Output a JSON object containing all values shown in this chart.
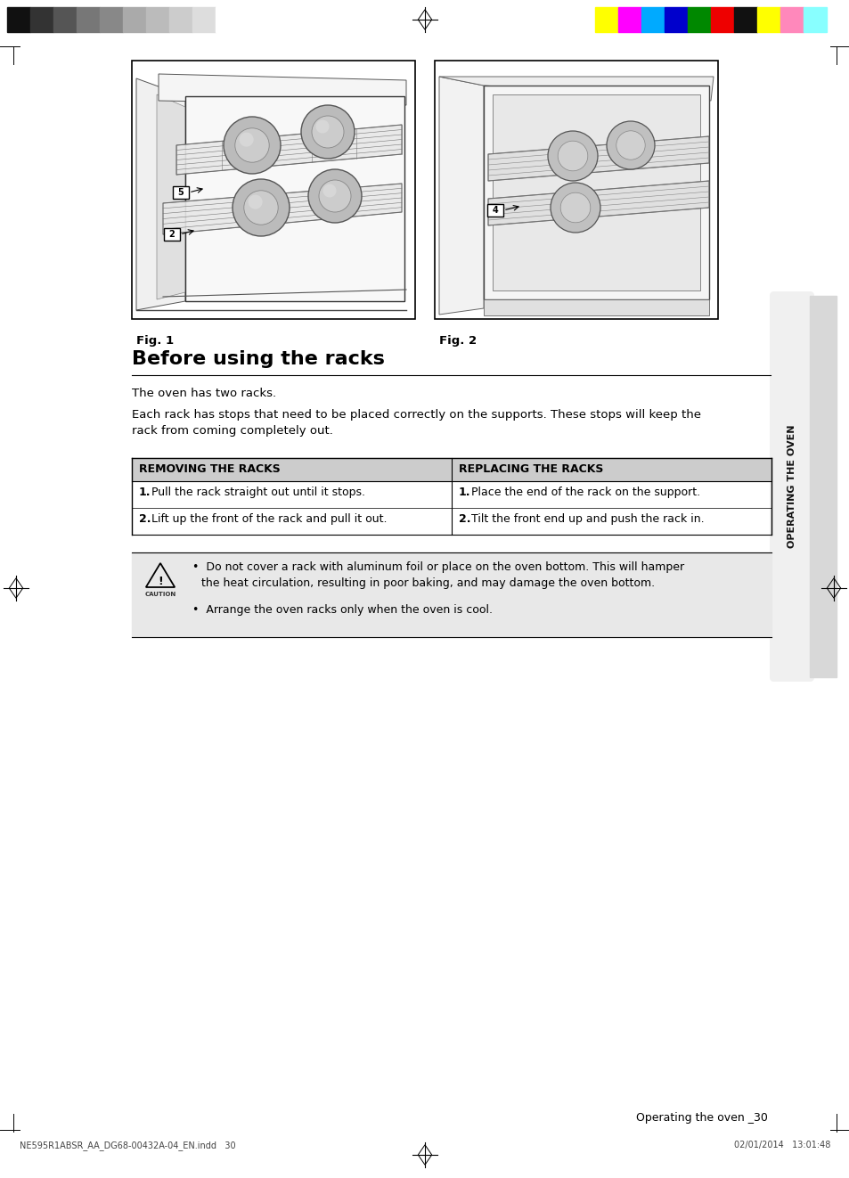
{
  "page_bg": "#ffffff",
  "gray_bar_colors": [
    "#111111",
    "#333333",
    "#555555",
    "#777777",
    "#888888",
    "#aaaaaa",
    "#bbbbbb",
    "#cccccc",
    "#dddddd",
    "#ffffff"
  ],
  "color_bar_colors": [
    "#ffff00",
    "#ff00ff",
    "#00aaff",
    "#0000cc",
    "#008800",
    "#ee0000",
    "#111111",
    "#ffff00",
    "#ff88bb",
    "#88ffff"
  ],
  "section_title": "Before using the racks",
  "para1": "The oven has two racks.",
  "para2": "Each rack has stops that need to be placed correctly on the supports. These stops will keep the rack from coming completely out.",
  "table_header_left": "REMOVING THE RACKS",
  "table_header_right": "REPLACING THE RACKS",
  "table_header_bg": "#cccccc",
  "remove_step1": "Pull the rack straight out until it stops.",
  "remove_step2": "Lift up the front of the rack and pull it out.",
  "replace_step1": "Place the end of the rack on the support.",
  "replace_step2": "Tilt the front end up and push the rack in.",
  "caution_bg": "#e8e8e8",
  "caution_bullet1a": "Do not cover a rack with aluminum foil or place on the oven bottom. This will hamper",
  "caution_bullet1b": "the heat circulation, resulting in poor baking, and may damage the oven bottom.",
  "caution_bullet2": "Arrange the oven racks only when the oven is cool.",
  "fig1_label": "Fig. 1",
  "fig2_label": "Fig. 2",
  "side_text": "OPERATING THE OVEN",
  "bottom_left": "NE595R1ABSR_AA_DG68-00432A-04_EN.indd   30",
  "bottom_right": "02/01/2014   13:01:48",
  "page_num_text": "Operating the oven _30",
  "sidebar_bg": "#d8d8d8",
  "sidebar_white_bg": "#f0f0f0"
}
